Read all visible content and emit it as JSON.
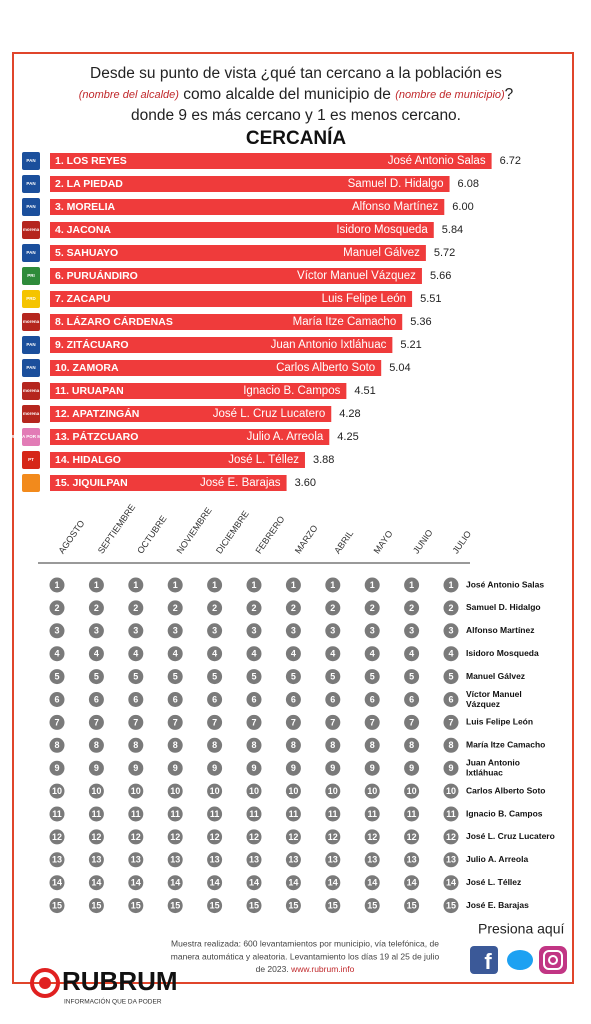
{
  "header": {
    "line1": "Desde su punto de vista ¿qué tan cercano a la población es",
    "line2": [
      "(nombre del alcalde)",
      " como alcalde del municipio de ",
      "(nombre de municipio)",
      "?"
    ],
    "line3": "donde 9 es más cercano y 1 es menos cercano."
  },
  "chart_data": {
    "type": "bar",
    "title": "CERCANÍA",
    "color": "#ef3b3b",
    "xlim": [
      0,
      7
    ],
    "categories": [
      "1. LOS REYES",
      "2. LA PIEDAD",
      "3. MORELIA",
      "4. JACONA",
      "5. SAHUAYO",
      "6. PURUÁNDIRO",
      "7. ZACAPU",
      "8. LÁZARO CÁRDENAS",
      "9. ZITÁCUARO",
      "10. ZAMORA",
      "11. URUAPAN",
      "12. APATZINGÁN",
      "13. PÁTZCUARO",
      "14. HIDALGO",
      "15. JIQUILPAN"
    ],
    "names": [
      "José Antonio Salas",
      "Samuel D. Hidalgo",
      "Alfonso Martínez",
      "Isidoro Mosqueda",
      "Manuel Gálvez",
      "Víctor Manuel Vázquez",
      "Luis Felipe León",
      "María Itze Camacho",
      "Juan Antonio Ixtláhuac",
      "Carlos Alberto Soto",
      "Ignacio B. Campos",
      "José L. Cruz Lucatero",
      "Julio A. Arreola",
      "José L. Téllez",
      "José E. Barajas"
    ],
    "parties": [
      "PAN",
      "PAN",
      "PAN",
      "morena",
      "PAN",
      "PRI",
      "PRD",
      "morena",
      "PAN",
      "PAN",
      "morena",
      "morena",
      "FUERZA POR MÉXICO",
      "PT",
      null
    ],
    "party_colors": [
      "#1b4f9c",
      "#1b4f9c",
      "#1b4f9c",
      "#b5261e",
      "#1b4f9c",
      "#2e8b3a",
      "#f5c400",
      "#b5261e",
      "#1b4f9c",
      "#1b4f9c",
      "#b5261e",
      "#b5261e",
      "#e27bb6",
      "#d62718",
      "#f28a1c"
    ],
    "values": [
      6.72,
      6.08,
      6.0,
      5.84,
      5.72,
      5.66,
      5.51,
      5.36,
      5.21,
      5.04,
      4.51,
      4.28,
      4.25,
      3.88,
      3.6
    ],
    "value_labels": [
      "6.72",
      "6.08",
      "6.00",
      "5.84",
      "5.72",
      "5.66",
      "5.51",
      "5.36",
      "5.21",
      "5.04",
      "4.51",
      "4.28",
      "4.25",
      "3.88",
      "3.60"
    ]
  },
  "ranking": {
    "months": [
      "AGOSTO",
      "SEPTIEMBRE",
      "OCTUBRE",
      "NOVIEMBRE",
      "DICIEMBRE",
      "FEBRERO",
      "MARZO",
      "ABRIL",
      "MAYO",
      "JUNIO",
      "JULIO"
    ],
    "ranks": [
      1,
      2,
      3,
      4,
      5,
      6,
      7,
      8,
      9,
      10,
      11,
      12,
      13,
      14,
      15
    ],
    "names": [
      "José Antonio Salas",
      "Samuel D. Hidalgo",
      "Alfonso Martínez",
      "Isidoro Mosqueda",
      "Manuel Gálvez",
      [
        "Víctor Manuel",
        "Vázquez"
      ],
      "Luis Felipe León",
      "María Itze Camacho",
      [
        "Juan Antonio",
        "Ixtláhuac"
      ],
      "Carlos Alberto Soto",
      "Ignacio B. Campos",
      "José L. Cruz Lucatero",
      "Julio A. Arreola",
      "José L. Téllez",
      "José E. Barajas"
    ]
  },
  "footer": {
    "cta": "Presiona aquí",
    "note": [
      "Muestra realizada: 600 levantamientos por municipio, vía telefónica, de",
      "manera automática y aleatoria. Levantamiento los días 19 al 25 de julio",
      "de 2023. ",
      "www.rubrum.info"
    ],
    "brand": "RUBRUM",
    "tagline": "INFORMACIÓN QUE DA PODER"
  }
}
